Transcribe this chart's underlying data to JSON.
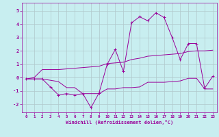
{
  "xlabel": "Windchill (Refroidissement éolien,°C)",
  "background_color": "#c8eef0",
  "line_color": "#990099",
  "grid_color": "#b0c8cc",
  "xlim": [
    -0.5,
    23.5
  ],
  "ylim": [
    -2.6,
    5.6
  ],
  "yticks": [
    -2,
    -1,
    0,
    1,
    2,
    3,
    4,
    5
  ],
  "xticks": [
    0,
    1,
    2,
    3,
    4,
    5,
    6,
    7,
    8,
    9,
    10,
    11,
    12,
    13,
    14,
    15,
    16,
    17,
    18,
    19,
    20,
    21,
    22,
    23
  ],
  "x": [
    0,
    1,
    2,
    3,
    4,
    5,
    6,
    7,
    8,
    9,
    10,
    11,
    12,
    13,
    14,
    15,
    16,
    17,
    18,
    19,
    20,
    21,
    22,
    23
  ],
  "line1": [
    -0.1,
    -0.1,
    -0.1,
    -0.7,
    -1.3,
    -1.2,
    -1.3,
    -1.2,
    -2.25,
    -1.15,
    1.0,
    2.1,
    0.45,
    4.1,
    4.55,
    4.25,
    4.85,
    4.5,
    3.0,
    1.35,
    2.55,
    2.55,
    -0.8,
    0.1
  ],
  "line2": [
    -0.1,
    0.0,
    0.6,
    0.6,
    0.6,
    0.65,
    0.7,
    0.75,
    0.8,
    0.85,
    1.05,
    1.1,
    1.15,
    1.35,
    1.45,
    1.6,
    1.65,
    1.7,
    1.75,
    1.8,
    1.95,
    2.0,
    2.0,
    2.05
  ],
  "line3": [
    -0.1,
    -0.1,
    -0.1,
    -0.2,
    -0.3,
    -0.75,
    -0.75,
    -1.2,
    -1.2,
    -1.2,
    -0.85,
    -0.85,
    -0.75,
    -0.75,
    -0.7,
    -0.35,
    -0.35,
    -0.35,
    -0.3,
    -0.25,
    -0.05,
    -0.05,
    -0.85,
    -0.85
  ]
}
